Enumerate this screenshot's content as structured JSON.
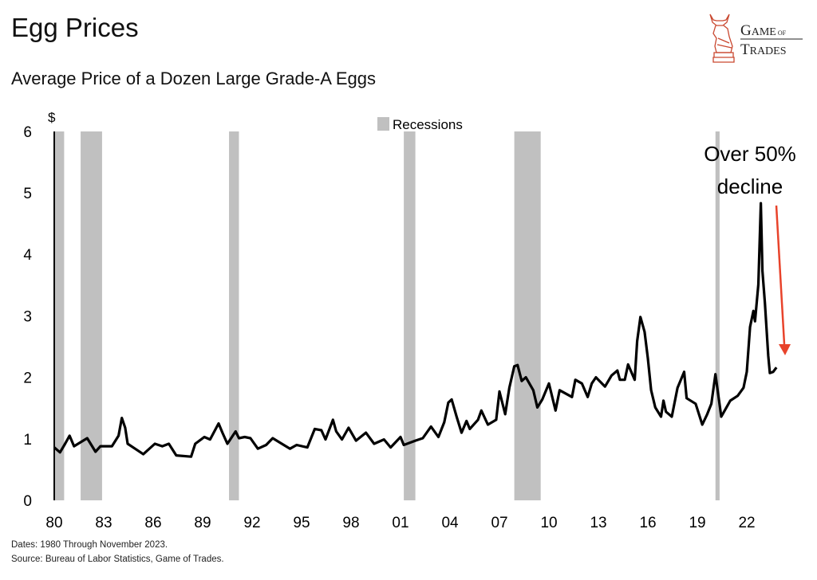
{
  "header": {
    "title": "Egg Prices",
    "subtitle": "Average Price of a Dozen Large Grade-A Eggs"
  },
  "logo": {
    "text_line1": "GAME OF",
    "text_line2": "TRADES",
    "color": "#c0392b"
  },
  "footer": {
    "line1": "Dates: 1980 Through November 2023.",
    "line2": "Source: Bureau of Labor Statistics, Game of Trades."
  },
  "chart_data": {
    "type": "line",
    "title": "Egg Prices",
    "subtitle": "Average Price of a Dozen Large Grade-A Eggs",
    "ylabel": "$",
    "ylim": [
      0,
      6
    ],
    "yticks": [
      0,
      1,
      2,
      3,
      4,
      5,
      6
    ],
    "xlim": [
      1980,
      2025
    ],
    "xticks": [
      1980,
      1983,
      1986,
      1989,
      1992,
      1995,
      1998,
      2001,
      2004,
      2007,
      2010,
      2013,
      2016,
      2019,
      2022
    ],
    "xtick_labels": [
      "80",
      "83",
      "86",
      "89",
      "92",
      "95",
      "98",
      "01",
      "04",
      "07",
      "10",
      "13",
      "16",
      "19",
      "22"
    ],
    "grid": false,
    "legend": {
      "position": "top-center",
      "entries": [
        "Recessions"
      ]
    },
    "recession_color": "#c0c0c0",
    "line_color": "#000000",
    "annotation": {
      "text_line1": "Over 50%",
      "text_line2": "decline",
      "arrow_color": "#e8432b"
    },
    "recessions": [
      [
        1980.0,
        1980.6
      ],
      [
        1981.6,
        1982.9
      ],
      [
        1990.6,
        1991.2
      ],
      [
        2001.2,
        2001.9
      ],
      [
        2007.9,
        2009.5
      ],
      [
        2020.1,
        2020.35
      ]
    ],
    "series": [
      {
        "x": [
          1980.0,
          1980.35,
          1980.66,
          1980.93,
          1981.2,
          1982.0,
          1982.5,
          1982.8,
          1983.5,
          1983.9,
          1984.1,
          1984.3,
          1984.45,
          1984.9,
          1985.4,
          1986.1,
          1986.55,
          1986.95,
          1987.4,
          1988.3,
          1988.55,
          1989.1,
          1989.45,
          1989.97,
          1990.2,
          1990.5,
          1991.0,
          1991.2,
          1991.55,
          1991.9,
          1992.35,
          1992.85,
          1993.25,
          1993.8,
          1994.3,
          1994.7,
          1995.35,
          1995.8,
          1996.2,
          1996.45,
          1996.9,
          1997.1,
          1997.45,
          1997.85,
          1998.3,
          1998.9,
          1999.4,
          2000.0,
          2000.4,
          2001.0,
          2001.2,
          2001.9,
          2002.35,
          2002.85,
          2003.3,
          2003.65,
          2003.9,
          2004.1,
          2004.4,
          2004.7,
          2005.0,
          2005.2,
          2005.7,
          2005.9,
          2006.3,
          2006.8,
          2007.0,
          2007.35,
          2007.6,
          2007.9,
          2008.1,
          2008.35,
          2008.6,
          2009.05,
          2009.3,
          2009.6,
          2010.0,
          2010.4,
          2010.65,
          2011.4,
          2011.6,
          2012.0,
          2012.35,
          2012.6,
          2012.85,
          2013.4,
          2013.8,
          2014.15,
          2014.3,
          2014.6,
          2014.8,
          2015.2,
          2015.35,
          2015.55,
          2015.8,
          2016.0,
          2016.2,
          2016.45,
          2016.8,
          2016.95,
          2017.1,
          2017.45,
          2017.8,
          2018.2,
          2018.35,
          2018.9,
          2019.3,
          2019.6,
          2019.85,
          2020.1,
          2020.45,
          2021.0,
          2021.45,
          2021.8,
          2022.0,
          2022.2,
          2022.4,
          2022.5,
          2022.7,
          2022.85,
          2022.95,
          2023.1,
          2023.3,
          2023.4,
          2023.6,
          2023.8
        ],
        "y": [
          0.86,
          0.78,
          0.92,
          1.05,
          0.88,
          1.01,
          0.79,
          0.88,
          0.88,
          1.05,
          1.34,
          1.18,
          0.92,
          0.84,
          0.75,
          0.92,
          0.88,
          0.92,
          0.73,
          0.71,
          0.92,
          1.03,
          0.99,
          1.25,
          1.1,
          0.92,
          1.12,
          1.01,
          1.03,
          1.01,
          0.84,
          0.9,
          1.01,
          0.92,
          0.84,
          0.9,
          0.86,
          1.16,
          1.14,
          0.99,
          1.31,
          1.12,
          0.99,
          1.18,
          0.97,
          1.1,
          0.92,
          0.99,
          0.86,
          1.03,
          0.9,
          0.97,
          1.01,
          1.2,
          1.03,
          1.27,
          1.59,
          1.64,
          1.36,
          1.1,
          1.29,
          1.16,
          1.31,
          1.46,
          1.23,
          1.31,
          1.77,
          1.4,
          1.83,
          2.18,
          2.2,
          1.94,
          2.0,
          1.79,
          1.51,
          1.64,
          1.9,
          1.46,
          1.79,
          1.68,
          1.96,
          1.9,
          1.68,
          1.9,
          2.0,
          1.85,
          2.03,
          2.11,
          1.96,
          1.96,
          2.21,
          1.96,
          2.59,
          2.98,
          2.74,
          2.31,
          1.79,
          1.51,
          1.36,
          1.62,
          1.44,
          1.36,
          1.83,
          2.09,
          1.66,
          1.57,
          1.23,
          1.4,
          1.57,
          2.05,
          1.36,
          1.62,
          1.7,
          1.83,
          2.09,
          2.82,
          3.08,
          2.91,
          3.51,
          4.83,
          3.73,
          3.21,
          2.35,
          2.07,
          2.09,
          2.16
        ]
      }
    ]
  }
}
